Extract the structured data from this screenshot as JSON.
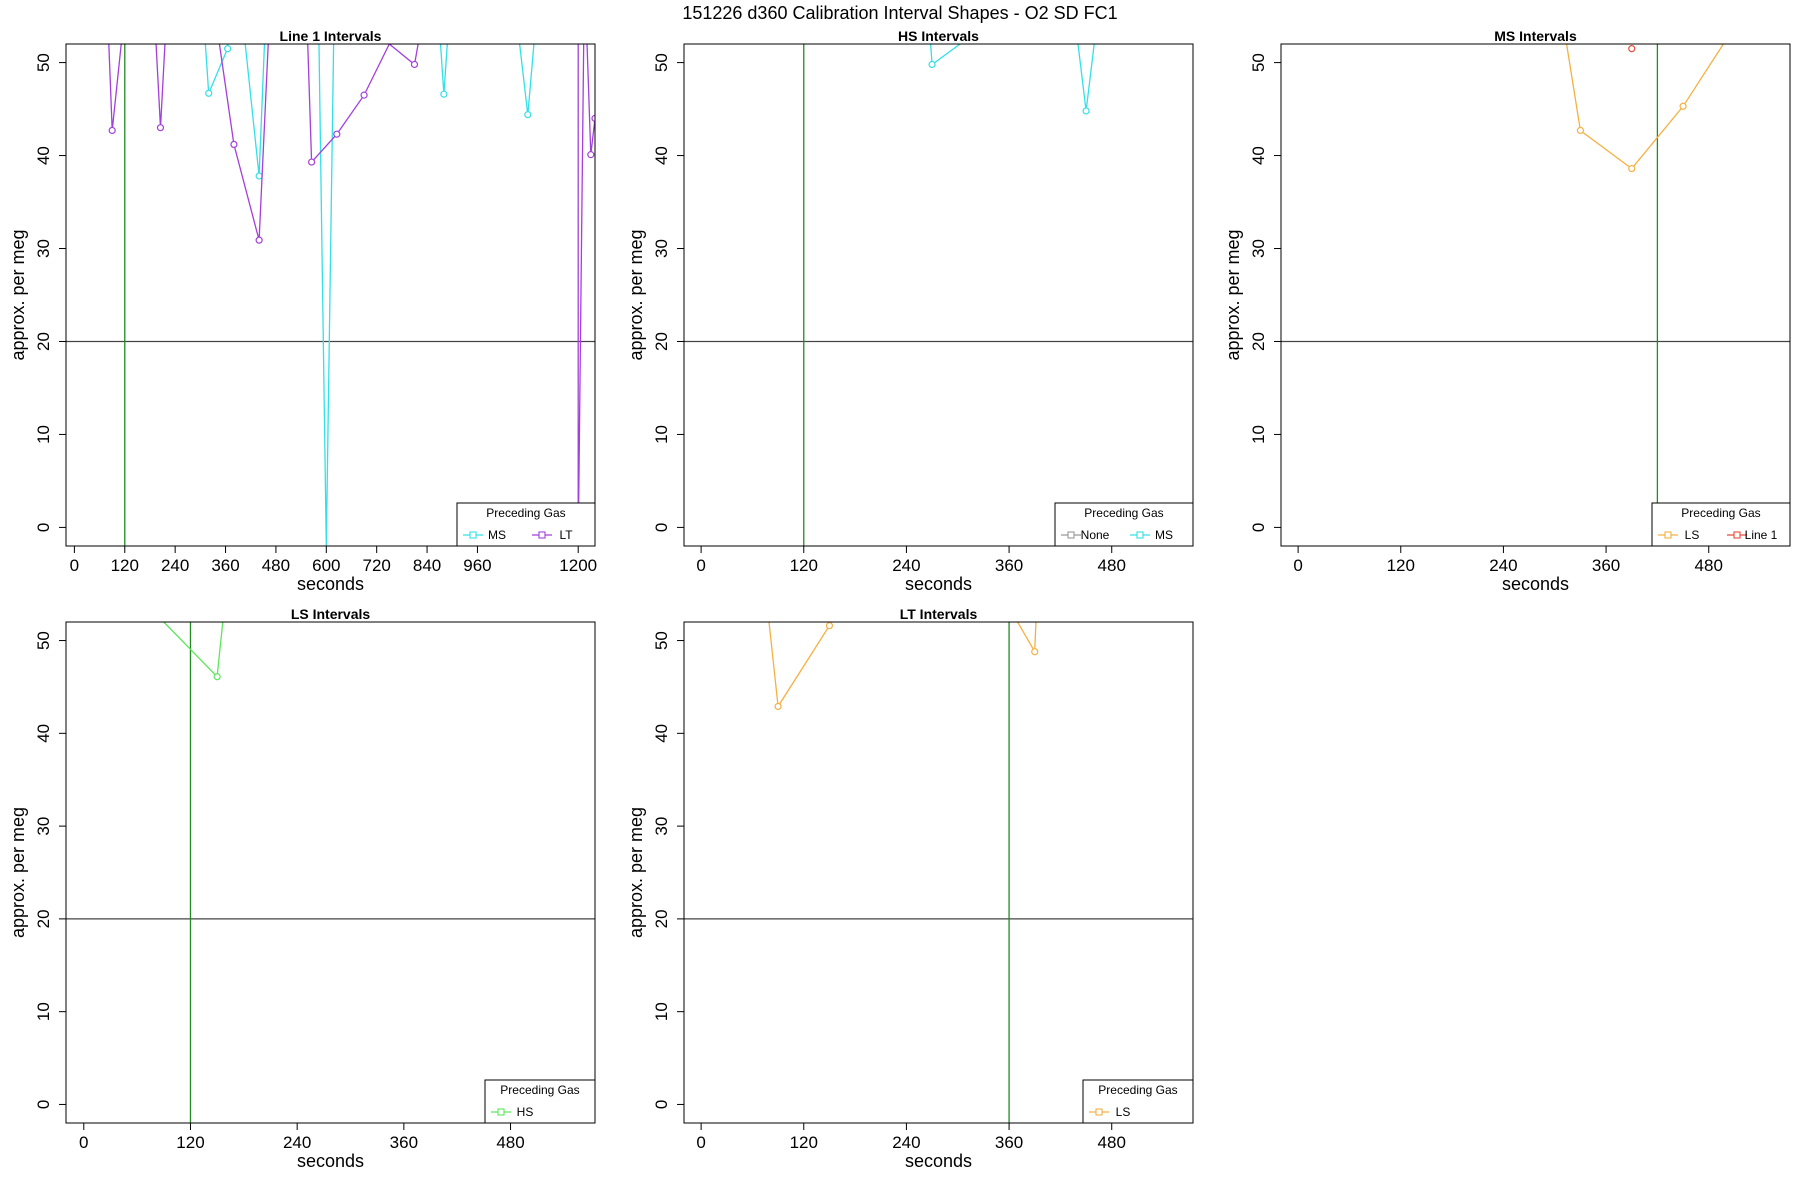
{
  "title": "151226   d360   Calibration Interval Shapes - O2 SD FC1",
  "chart_data": [
    {
      "type": "line",
      "title": "Line 1 Intervals",
      "xlabel": "seconds",
      "ylabel": "approx. per meg",
      "xlim": [
        -20,
        1240
      ],
      "ylim": [
        -2,
        52
      ],
      "xticks": [
        0,
        120,
        240,
        360,
        480,
        600,
        720,
        840,
        960,
        1200
      ],
      "yticks": [
        0,
        10,
        20,
        30,
        40,
        50
      ],
      "hline": 20,
      "vlines": [
        {
          "x": 120,
          "color": "#228b22"
        }
      ],
      "legend": {
        "title": "Preceding Gas",
        "position": "bottom-right",
        "entries": [
          "MS",
          "LT"
        ]
      },
      "series": [
        {
          "name": "MS",
          "color": "#33e0e8",
          "points": [
            [
              300,
              60
            ],
            [
              320,
              46.7
            ],
            [
              365,
              51.5
            ],
            [
              380,
              60
            ],
            [
              400,
              55
            ],
            [
              440,
              37.8
            ],
            [
              460,
              60
            ],
            [
              580,
              60
            ],
            [
              600,
              -2
            ],
            [
              620,
              60
            ],
            [
              860,
              60
            ],
            [
              880,
              46.6
            ],
            [
              900,
              60
            ],
            [
              1040,
              60
            ],
            [
              1080,
              44.4
            ],
            [
              1110,
              60
            ]
          ]
        },
        {
          "name": "LT",
          "color": "#a43fdb",
          "points": [
            [
              75,
              60
            ],
            [
              90,
              42.7
            ],
            [
              130,
              60
            ],
            [
              185,
              60
            ],
            [
              205,
              43
            ],
            [
              225,
              60
            ],
            [
              320,
              60
            ],
            [
              380,
              41.2
            ],
            [
              440,
              30.9
            ],
            [
              470,
              60
            ],
            [
              550,
              60
            ],
            [
              565,
              39.3
            ],
            [
              625,
              42.3
            ],
            [
              690,
              46.5
            ],
            [
              750,
              52
            ],
            [
              810,
              49.8
            ],
            [
              850,
              60
            ],
            [
              1200,
              60
            ],
            [
              1200,
              -2
            ],
            [
              1215,
              60
            ],
            [
              1230,
              40.1
            ],
            [
              1240,
              44
            ]
          ]
        }
      ]
    },
    {
      "type": "line",
      "title": "HS Intervals",
      "xlabel": "seconds",
      "ylabel": "approx. per meg",
      "xlim": [
        -20,
        575
      ],
      "ylim": [
        -2,
        52
      ],
      "xticks": [
        0,
        120,
        240,
        360,
        480
      ],
      "yticks": [
        0,
        10,
        20,
        30,
        40,
        50
      ],
      "hline": 20,
      "vlines": [
        {
          "x": 120,
          "color": "#228b22"
        }
      ],
      "legend": {
        "title": "Preceding Gas",
        "position": "bottom-right",
        "entries": [
          "None",
          "MS"
        ]
      },
      "series": [
        {
          "name": "None",
          "color": "#999999",
          "points": []
        },
        {
          "name": "MS",
          "color": "#33e0e8",
          "points": [
            [
              262,
              60
            ],
            [
              270,
              49.8
            ],
            [
              310,
              52.5
            ],
            [
              320,
              60
            ],
            [
              430,
              60
            ],
            [
              450,
              44.8
            ],
            [
              470,
              60
            ]
          ]
        }
      ]
    },
    {
      "type": "line",
      "title": "MS Intervals",
      "xlabel": "seconds",
      "ylabel": "approx. per meg",
      "xlim": [
        -20,
        575
      ],
      "ylim": [
        -2,
        52
      ],
      "xticks": [
        0,
        120,
        240,
        360,
        480
      ],
      "yticks": [
        0,
        10,
        20,
        30,
        40,
        50
      ],
      "hline": 20,
      "vlines": [
        {
          "x": 420,
          "color": "#228b22"
        }
      ],
      "legend": {
        "title": "Preceding Gas",
        "position": "bottom-right",
        "entries": [
          "LS",
          "Line 1"
        ]
      },
      "series": [
        {
          "name": "LS",
          "color": "#f5b041",
          "points": [
            [
              300,
              60
            ],
            [
              330,
              42.7
            ],
            [
              390,
              38.6
            ],
            [
              450,
              45.3
            ],
            [
              500,
              52.4
            ],
            [
              510,
              60
            ]
          ]
        },
        {
          "name": "Line 1",
          "color": "#e74c3c",
          "points": [
            [
              390,
              51.5
            ]
          ]
        }
      ]
    },
    {
      "type": "line",
      "title": "LS Intervals",
      "xlabel": "seconds",
      "ylabel": "approx. per meg",
      "xlim": [
        -20,
        575
      ],
      "ylim": [
        -2,
        52
      ],
      "xticks": [
        0,
        120,
        240,
        360,
        480
      ],
      "yticks": [
        0,
        10,
        20,
        30,
        40,
        50
      ],
      "hline": 20,
      "vlines": [
        {
          "x": 120,
          "color": "#228b22"
        }
      ],
      "legend": {
        "title": "Preceding Gas",
        "position": "bottom-right",
        "entries": [
          "HS"
        ]
      },
      "series": [
        {
          "name": "HS",
          "color": "#5ce65c",
          "points": [
            [
              70,
              60
            ],
            [
              90,
              52
            ],
            [
              150,
              46.1
            ],
            [
              165,
              60
            ],
            [
              550,
              60
            ],
            [
              555,
              52
            ]
          ]
        }
      ]
    },
    {
      "type": "line",
      "title": "LT Intervals",
      "xlabel": "seconds",
      "ylabel": "approx. per meg",
      "xlim": [
        -20,
        575
      ],
      "ylim": [
        -2,
        52
      ],
      "xticks": [
        0,
        120,
        240,
        360,
        480
      ],
      "yticks": [
        0,
        10,
        20,
        30,
        40,
        50
      ],
      "hline": 20,
      "vlines": [
        {
          "x": 360,
          "color": "#228b22"
        }
      ],
      "legend": {
        "title": "Preceding Gas",
        "position": "bottom-right",
        "entries": [
          "LS"
        ]
      },
      "series": [
        {
          "name": "LS",
          "color": "#f5b041",
          "points": [
            [
              70,
              60
            ],
            [
              90,
              42.9
            ],
            [
              150,
              51.6
            ],
            [
              155,
              60
            ],
            [
              320,
              60
            ],
            [
              390,
              48.8
            ],
            [
              395,
              60
            ]
          ]
        }
      ]
    }
  ]
}
